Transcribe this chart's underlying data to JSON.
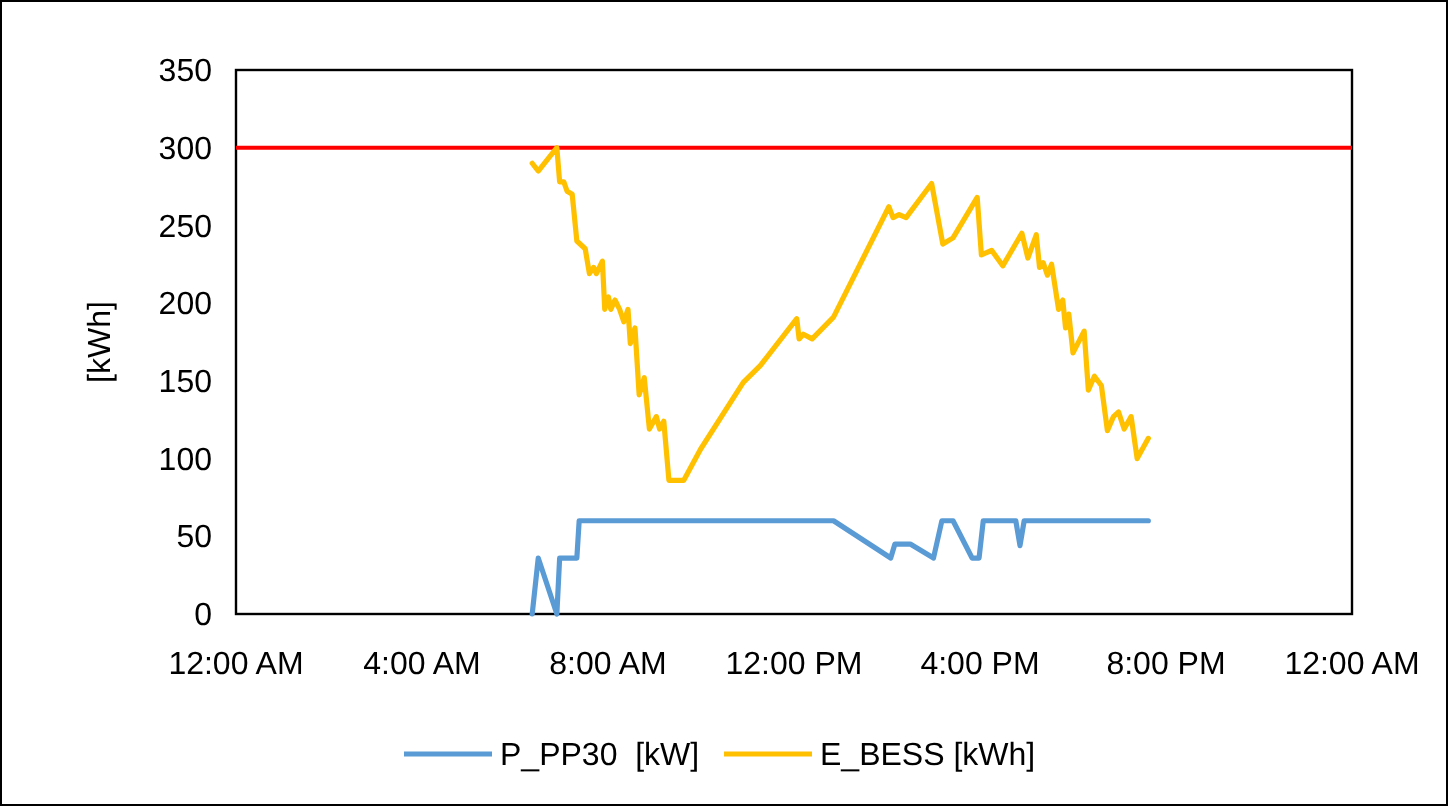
{
  "chart_data": {
    "type": "line",
    "ylabel": "[kWh]",
    "xlim": [
      0,
      24
    ],
    "xticks": [
      {
        "value": 0,
        "label": "12:00 AM"
      },
      {
        "value": 4,
        "label": "4:00 AM"
      },
      {
        "value": 8,
        "label": "8:00 AM"
      },
      {
        "value": 12,
        "label": "12:00 PM"
      },
      {
        "value": 16,
        "label": "4:00 PM"
      },
      {
        "value": 20,
        "label": "8:00 PM"
      },
      {
        "value": 24,
        "label": "12:00 AM"
      }
    ],
    "ylim": [
      0,
      350
    ],
    "yticks": [
      0,
      50,
      100,
      150,
      200,
      250,
      300,
      350
    ],
    "grid": false,
    "legend": "bottom",
    "line_style": "solid",
    "marker": "none",
    "ref_lines": [
      {
        "axis": "y",
        "value": 300,
        "color": "#ff0000"
      }
    ],
    "series": [
      {
        "name": "P_PP30  [kW]",
        "color": "#5b9bd5",
        "x": [
          6.37,
          6.5,
          6.9,
          6.96,
          7.33,
          7.38,
          12.85,
          14.08,
          14.17,
          14.5,
          15.0,
          15.18,
          15.42,
          15.83,
          15.98,
          16.07,
          16.77,
          16.86,
          16.95,
          19.62
        ],
        "values": [
          0,
          36,
          0,
          36,
          36,
          60,
          60,
          36,
          45,
          45,
          36,
          60,
          60,
          36,
          36,
          60,
          60,
          44,
          60,
          60
        ]
      },
      {
        "name": "E_BESS [kWh]",
        "color": "#ffc000",
        "x": [
          6.37,
          6.5,
          6.9,
          6.96,
          7.05,
          7.12,
          7.23,
          7.33,
          7.51,
          7.6,
          7.69,
          7.75,
          7.88,
          7.93,
          8.01,
          8.06,
          8.15,
          8.25,
          8.34,
          8.43,
          8.48,
          8.58,
          8.67,
          8.78,
          8.89,
          9.04,
          9.11,
          9.2,
          9.31,
          9.63,
          9.99,
          10.91,
          11.28,
          12.06,
          12.11,
          12.2,
          12.39,
          12.85,
          14.04,
          14.13,
          14.26,
          14.41,
          14.96,
          15.2,
          15.42,
          15.94,
          16.03,
          16.25,
          16.49,
          16.9,
          17.03,
          17.21,
          17.28,
          17.36,
          17.45,
          17.54,
          17.69,
          17.78,
          17.84,
          17.91,
          18.0,
          18.24,
          18.33,
          18.46,
          18.61,
          18.74,
          18.87,
          18.98,
          19.1,
          19.25,
          19.38,
          19.62
        ],
        "values": [
          290,
          285,
          300,
          278,
          278,
          272,
          270,
          240,
          235,
          219,
          223,
          219,
          227,
          196,
          204,
          196,
          202,
          196,
          188,
          196,
          174,
          184,
          141,
          152,
          119,
          127,
          119,
          124,
          86,
          86,
          106,
          149,
          160,
          190,
          177,
          180,
          177,
          191,
          262,
          255,
          257,
          255,
          277,
          238,
          242,
          268,
          231,
          234,
          224,
          245,
          229,
          244,
          223,
          226,
          218,
          225,
          196,
          202,
          184,
          193,
          168,
          182,
          144,
          153,
          147,
          118,
          127,
          130,
          119,
          127,
          100,
          113
        ]
      }
    ]
  }
}
